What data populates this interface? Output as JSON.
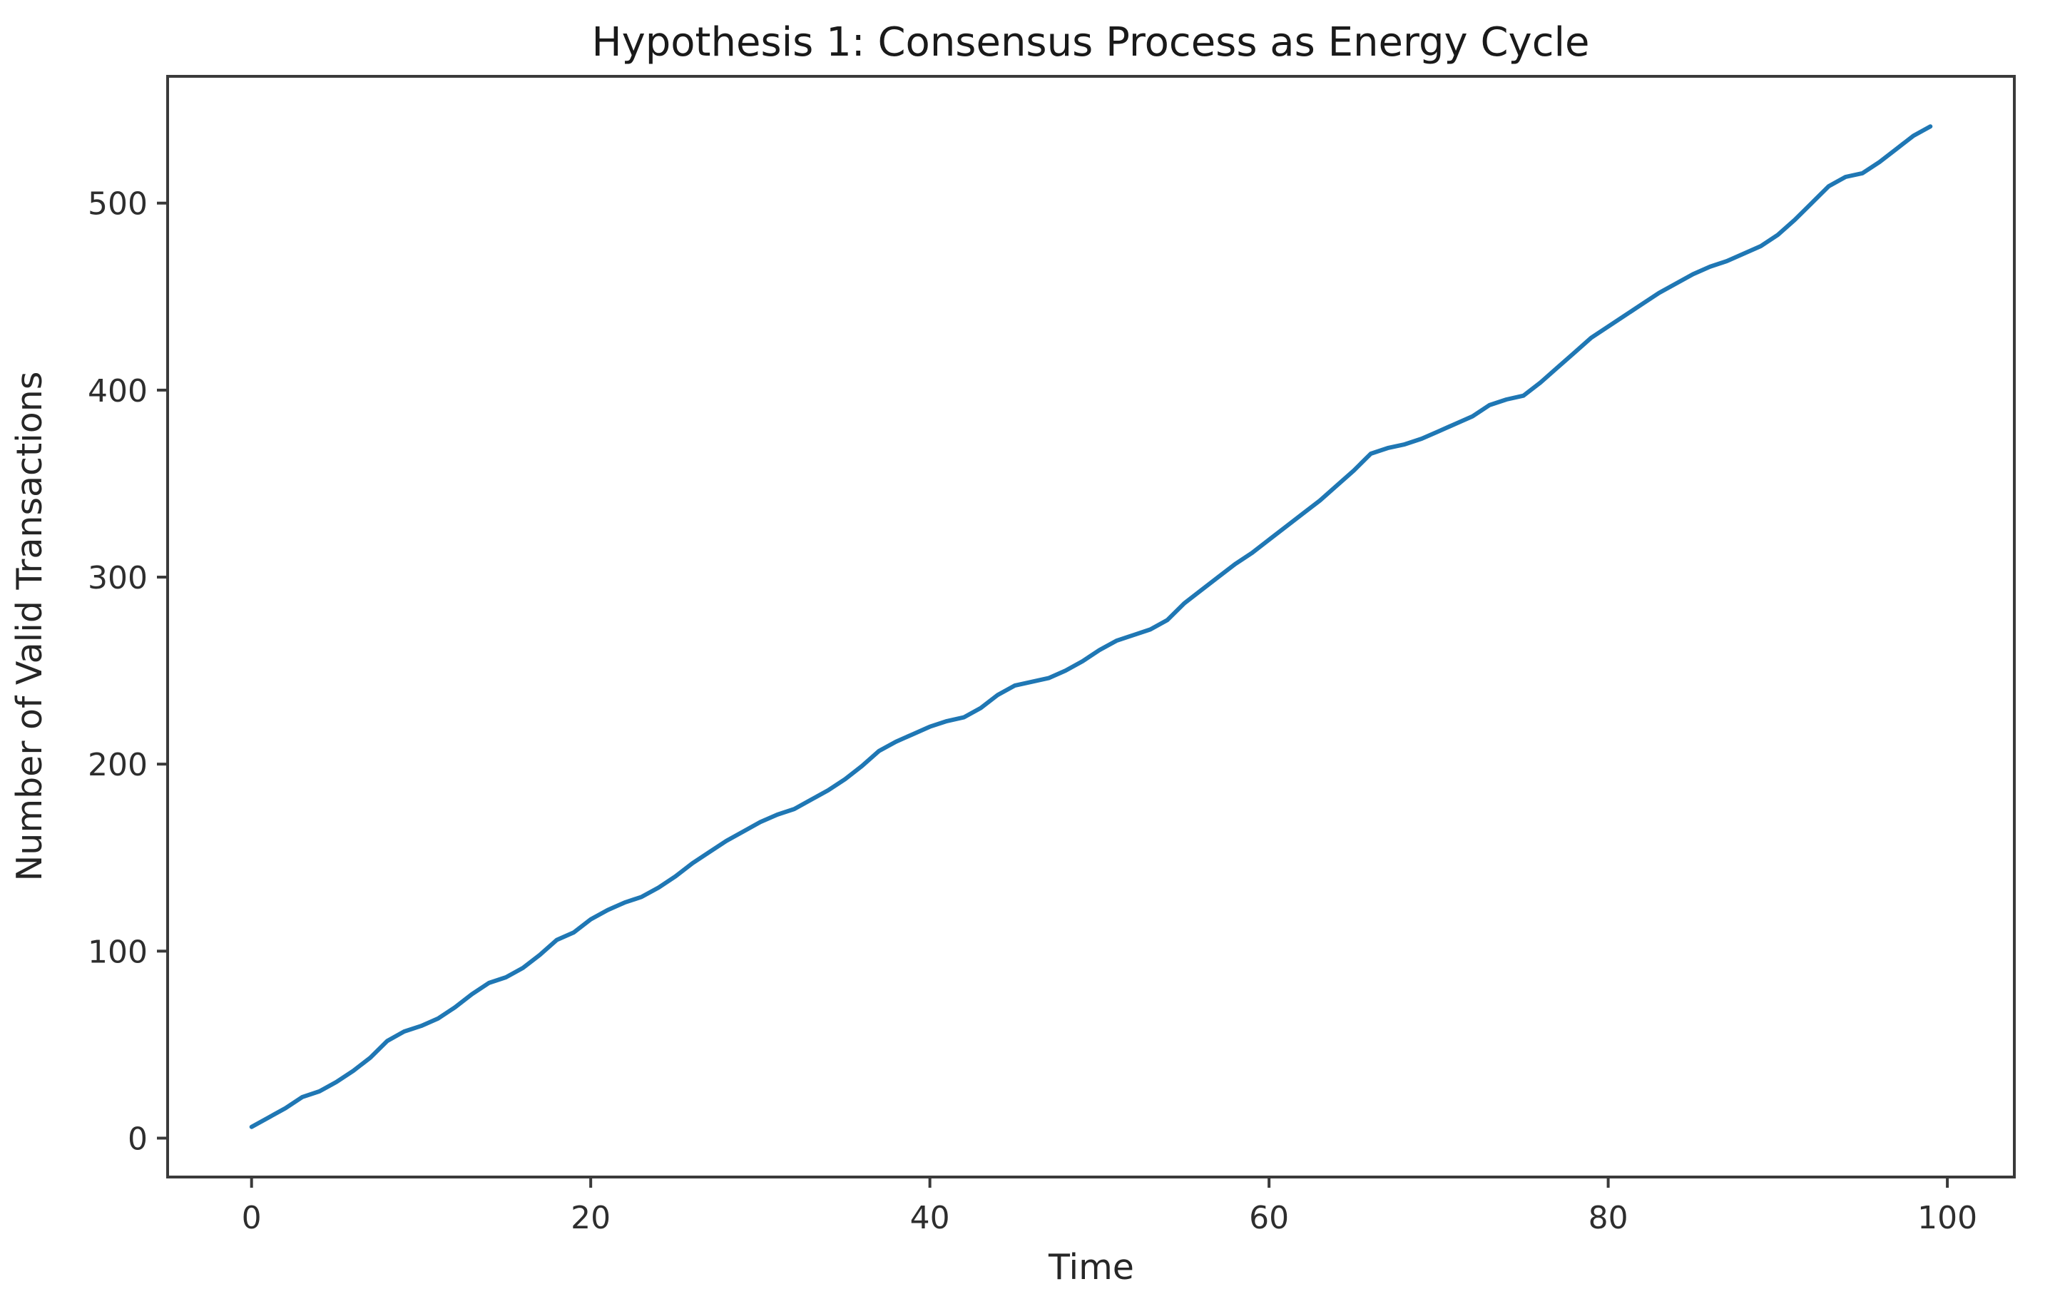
{
  "chart_data": {
    "type": "line",
    "title": "Hypothesis 1: Consensus Process as Energy Cycle",
    "xlabel": "Time",
    "ylabel": "Number of Valid Transactions",
    "x": [
      0,
      1,
      2,
      3,
      4,
      5,
      6,
      7,
      8,
      9,
      10,
      11,
      12,
      13,
      14,
      15,
      16,
      17,
      18,
      19,
      20,
      21,
      22,
      23,
      24,
      25,
      26,
      27,
      28,
      29,
      30,
      31,
      32,
      33,
      34,
      35,
      36,
      37,
      38,
      39,
      40,
      41,
      42,
      43,
      44,
      45,
      46,
      47,
      48,
      49,
      50,
      51,
      52,
      53,
      54,
      55,
      56,
      57,
      58,
      59,
      60,
      61,
      62,
      63,
      64,
      65,
      66,
      67,
      68,
      69,
      70,
      71,
      72,
      73,
      74,
      75,
      76,
      77,
      78,
      79,
      80,
      81,
      82,
      83,
      84,
      85,
      86,
      87,
      88,
      89,
      90,
      91,
      92,
      93,
      94,
      95,
      96,
      97,
      98,
      99
    ],
    "y": [
      6,
      11,
      16,
      22,
      25,
      30,
      36,
      43,
      52,
      57,
      60,
      64,
      70,
      77,
      83,
      86,
      91,
      98,
      106,
      110,
      117,
      122,
      126,
      129,
      134,
      140,
      147,
      153,
      159,
      164,
      169,
      173,
      176,
      181,
      186,
      192,
      199,
      207,
      212,
      216,
      220,
      223,
      225,
      230,
      237,
      242,
      244,
      246,
      250,
      255,
      261,
      266,
      269,
      272,
      277,
      286,
      293,
      300,
      307,
      313,
      320,
      327,
      334,
      341,
      349,
      357,
      366,
      369,
      371,
      374,
      378,
      382,
      386,
      392,
      395,
      397,
      404,
      412,
      420,
      428,
      434,
      440,
      446,
      452,
      457,
      462,
      466,
      469,
      473,
      477,
      483,
      491,
      500,
      509,
      514,
      516,
      522,
      529,
      536,
      541
    ],
    "xticks": [
      0,
      20,
      40,
      60,
      80,
      100
    ],
    "yticks": [
      0,
      100,
      200,
      300,
      400,
      500
    ],
    "xlim": [
      -4.95,
      103.95
    ],
    "ylim": [
      -20.8,
      567.8
    ],
    "grid": false,
    "legend_position": "none",
    "line_color": "#1f77b4",
    "spine_color": "#3a3a3a",
    "tick_color": "#3a3a3a"
  }
}
